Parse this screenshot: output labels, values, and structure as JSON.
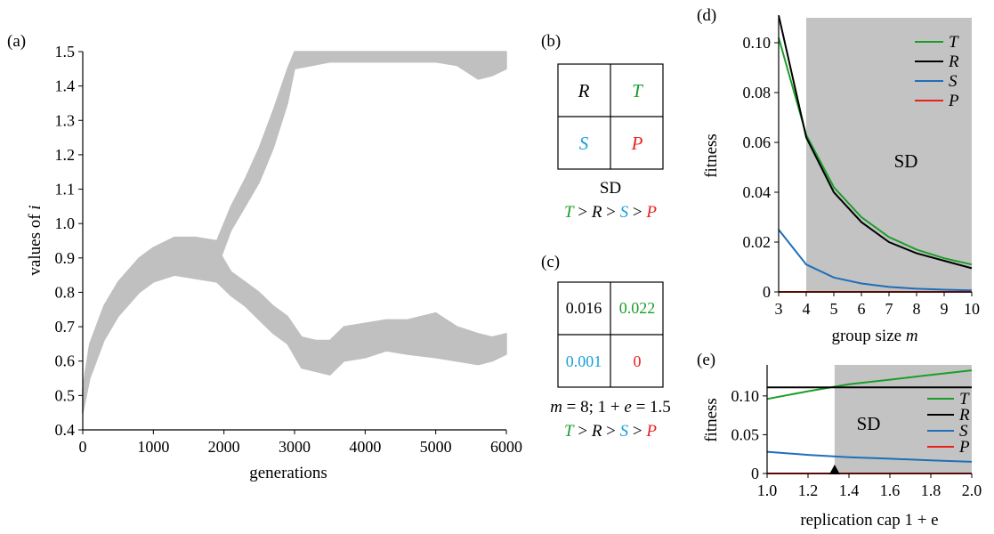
{
  "colors": {
    "T": "#1a9e2a",
    "R": "#000000",
    "S": "#1e6fb8",
    "P": "#e8211c",
    "S_matrix": "#1aa0d8",
    "band": "#c0c0c0",
    "shade": "#c3c3c3"
  },
  "chart_data": [
    {
      "id": "a",
      "type": "area",
      "panel_label": "(a)",
      "xlabel": "generations",
      "ylabel_prefix": "values of",
      "ylabel_var": "i",
      "xlim": [
        0,
        6000
      ],
      "ylim": [
        0.4,
        1.5
      ],
      "x_ticks": [
        "0",
        "1000",
        "2000",
        "3000",
        "4000",
        "5000",
        "6000"
      ],
      "y_ticks": [
        "0.4",
        "0.5",
        "0.6",
        "0.7",
        "0.8",
        "0.9",
        "1.0",
        "1.1",
        "1.2",
        "1.3",
        "1.4",
        "1.5"
      ],
      "series": [
        {
          "x": [
            0,
            100,
            300,
            500,
            800,
            1000,
            1300,
            1600,
            1900,
            2100,
            2300,
            2500,
            2700,
            2900,
            3000,
            3500,
            4000,
            4500,
            5000,
            5300,
            5600,
            5800,
            6000
          ],
          "low": [
            0.45,
            0.55,
            0.66,
            0.73,
            0.8,
            0.83,
            0.86,
            0.87,
            0.87,
            0.98,
            1.05,
            1.12,
            1.22,
            1.35,
            1.45,
            1.47,
            1.47,
            1.47,
            1.47,
            1.46,
            1.42,
            1.43,
            1.45
          ],
          "high": [
            0.52,
            0.65,
            0.76,
            0.83,
            0.9,
            0.93,
            0.96,
            0.96,
            0.95,
            1.05,
            1.13,
            1.22,
            1.33,
            1.45,
            1.5,
            1.5,
            1.5,
            1.5,
            1.5,
            1.5,
            1.5,
            1.5,
            1.5
          ]
        },
        {
          "x": [
            0,
            100,
            300,
            500,
            800,
            1000,
            1300,
            1600,
            1900,
            2100,
            2300,
            2500,
            2700,
            2900,
            3100,
            3300,
            3500,
            3700,
            4000,
            4300,
            4600,
            5000,
            5300,
            5600,
            5800,
            6000
          ],
          "low": [
            0.45,
            0.55,
            0.66,
            0.73,
            0.8,
            0.83,
            0.85,
            0.84,
            0.83,
            0.79,
            0.76,
            0.72,
            0.68,
            0.65,
            0.58,
            0.57,
            0.56,
            0.6,
            0.61,
            0.63,
            0.62,
            0.61,
            0.6,
            0.59,
            0.6,
            0.62
          ],
          "high": [
            0.52,
            0.65,
            0.76,
            0.83,
            0.9,
            0.93,
            0.95,
            0.94,
            0.93,
            0.86,
            0.83,
            0.8,
            0.76,
            0.73,
            0.67,
            0.66,
            0.66,
            0.7,
            0.71,
            0.72,
            0.72,
            0.74,
            0.7,
            0.68,
            0.67,
            0.68
          ]
        }
      ]
    },
    {
      "id": "d",
      "type": "line",
      "panel_label": "(d)",
      "xlabel_prefix": "group size",
      "xlabel_var": "m",
      "ylabel": "fitness",
      "shaded_label": "SD",
      "shaded_from": 4,
      "xlim": [
        3,
        10
      ],
      "ylim": [
        0,
        0.11
      ],
      "x_ticks": [
        "3",
        "4",
        "5",
        "6",
        "7",
        "8",
        "9",
        "10"
      ],
      "y_ticks": [
        "0",
        "0.02",
        "0.04",
        "0.06",
        "0.08",
        "0.10"
      ],
      "x": [
        3,
        4,
        5,
        6,
        7,
        8,
        9,
        10
      ],
      "series": [
        {
          "name": "T",
          "values": [
            0.102,
            0.063,
            0.042,
            0.03,
            0.022,
            0.017,
            0.0135,
            0.011
          ]
        },
        {
          "name": "R",
          "values": [
            0.111,
            0.062,
            0.04,
            0.028,
            0.02,
            0.0155,
            0.0125,
            0.0095
          ]
        },
        {
          "name": "S",
          "values": [
            0.025,
            0.011,
            0.0058,
            0.0034,
            0.002,
            0.0013,
            0.0009,
            0.0006
          ]
        },
        {
          "name": "P",
          "values": [
            0,
            0,
            0,
            0,
            0,
            0,
            0,
            0
          ]
        }
      ]
    },
    {
      "id": "e",
      "type": "line",
      "panel_label": "(e)",
      "xlabel": "replication cap 1 + e",
      "ylabel": "fitness",
      "shaded_label": "SD",
      "shaded_from": 1.33,
      "marker_x": 1.33,
      "xlim": [
        1.0,
        2.0
      ],
      "ylim": [
        0,
        0.14
      ],
      "x_ticks": [
        "1.0",
        "1.2",
        "1.4",
        "1.6",
        "1.8",
        "2.0"
      ],
      "y_ticks": [
        "0",
        "0.05",
        "0.10"
      ],
      "x": [
        1.0,
        1.2,
        1.4,
        1.6,
        1.8,
        2.0
      ],
      "series": [
        {
          "name": "T",
          "values": [
            0.096,
            0.106,
            0.115,
            0.121,
            0.127,
            0.133
          ]
        },
        {
          "name": "R",
          "values": [
            0.111,
            0.111,
            0.111,
            0.111,
            0.111,
            0.111
          ]
        },
        {
          "name": "S",
          "values": [
            0.028,
            0.024,
            0.021,
            0.019,
            0.017,
            0.015
          ]
        },
        {
          "name": "P",
          "values": [
            0,
            0,
            0,
            0,
            0,
            0
          ]
        }
      ]
    }
  ],
  "matrix_b": {
    "panel_label": "(b)",
    "cells": [
      "R",
      "T",
      "S",
      "P"
    ],
    "label": "SD"
  },
  "matrix_c": {
    "panel_label": "(c)",
    "cells": [
      "0.016",
      "0.022",
      "0.001",
      "0"
    ],
    "m_var": "m",
    "m_eq": " = 8; 1 + ",
    "e_var": "e",
    "e_eq": " = 1.5"
  },
  "inequality": {
    "parts": [
      "T",
      " > ",
      "R",
      " > ",
      "S",
      " > ",
      "P"
    ]
  }
}
